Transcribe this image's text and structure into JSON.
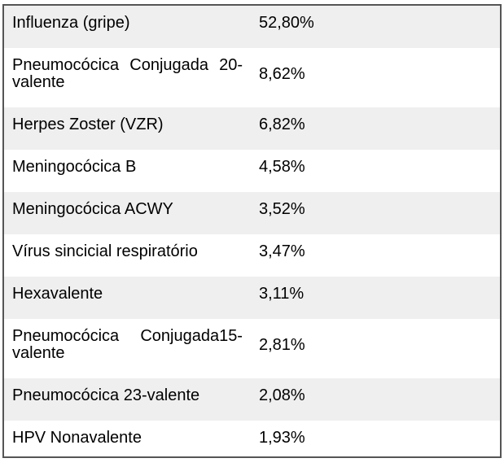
{
  "table": {
    "rows": [
      {
        "label": "Influenza (gripe)",
        "value": "52,80%"
      },
      {
        "label": "Pneumocócica Conjugada 20-valente",
        "value": "8,62%"
      },
      {
        "label": "Herpes Zoster (VZR)",
        "value": "6,82%"
      },
      {
        "label": "Meningocócica B",
        "value": "4,58%"
      },
      {
        "label": "Meningocócica ACWY",
        "value": "3,52%"
      },
      {
        "label": "Vírus sincicial respiratório",
        "value": "3,47%"
      },
      {
        "label": "Hexavalente",
        "value": "3,11%"
      },
      {
        "label": "Pneumocócica Conjugada15-valente",
        "value": "2,81%"
      },
      {
        "label": "Pneumocócica 23-valente",
        "value": "2,08%"
      },
      {
        "label": "HPV Nonavalente",
        "value": "1,93%"
      }
    ],
    "colors": {
      "row_alt_bg": "#efefef",
      "row_bg": "#ffffff",
      "border": "#555555",
      "text": "#000000"
    }
  },
  "chart_data": {
    "type": "table",
    "title": "",
    "categories": [
      "Influenza (gripe)",
      "Pneumocócica Conjugada 20-valente",
      "Herpes Zoster (VZR)",
      "Meningocócica B",
      "Meningocócica ACWY",
      "Vírus sincicial respiratório",
      "Hexavalente",
      "Pneumocócica Conjugada15-valente",
      "Pneumocócica 23-valente",
      "HPV Nonavalente"
    ],
    "values": [
      52.8,
      8.62,
      6.82,
      4.58,
      3.52,
      3.47,
      3.11,
      2.81,
      2.08,
      1.93
    ],
    "value_labels": [
      "52,80%",
      "8,62%",
      "6,82%",
      "4,58%",
      "3,52%",
      "3,47%",
      "3,11%",
      "2,81%",
      "2,08%",
      "1,93%"
    ],
    "value_unit": "percent",
    "decimal_separator": ","
  }
}
